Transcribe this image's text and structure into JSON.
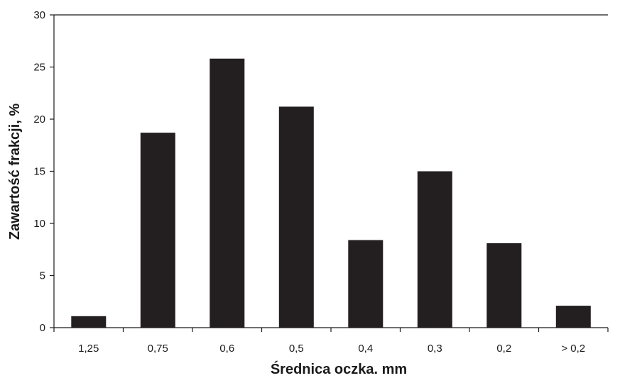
{
  "chart_data": {
    "type": "bar",
    "categories": [
      "1,25",
      "0,75",
      "0,6",
      "0,5",
      "0,4",
      "0,3",
      "0,2",
      "> 0,2"
    ],
    "values": [
      1.1,
      18.7,
      25.8,
      21.2,
      8.4,
      15.0,
      8.1,
      2.1
    ],
    "xlabel": "Średnica oczka. mm",
    "ylabel": "Zawartość frakcji, %",
    "ylim": [
      0,
      30
    ],
    "yticks": [
      "0",
      "5",
      "10",
      "15",
      "20",
      "25",
      "30"
    ],
    "grid": false,
    "bar_color": "#231f20",
    "axis_color": "#1a1a1a"
  }
}
